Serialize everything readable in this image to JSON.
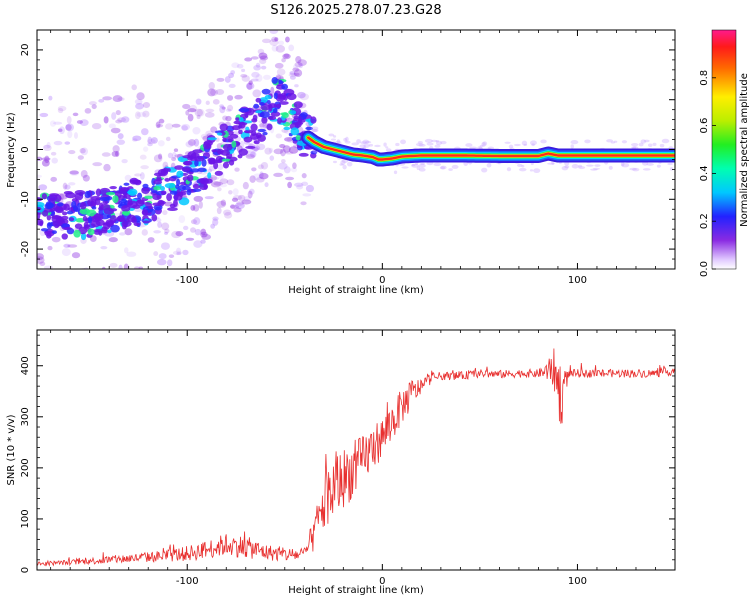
{
  "title": "S126.2025.278.07.23.G28",
  "colors": {
    "snr_line": "#e8302f",
    "spectrum_ridge": "#ff2a1a",
    "spectrum_scatter": "#8a2be2",
    "axis": "#000000"
  },
  "chart_data": [
    {
      "type": "heatmap",
      "title": "",
      "xlabel": "Height of straight line (km)",
      "ylabel": "Frequency (Hz)",
      "xlim": [
        -177,
        150
      ],
      "ylim": [
        -24,
        24
      ],
      "xticks": [
        -100,
        0,
        100
      ],
      "xtick_labels": [
        "-100",
        "0",
        "100"
      ],
      "yticks": [
        -20,
        -10,
        0,
        10,
        20
      ],
      "ytick_labels": [
        "-20",
        "-10",
        "0",
        "10",
        "20"
      ],
      "ridge": {
        "x": [
          -150,
          -140,
          -130,
          -120,
          -110,
          -100,
          -90,
          -80,
          -70,
          -60,
          -55,
          -50,
          -45,
          -40,
          -35,
          -30,
          -25,
          -20,
          -15,
          -10,
          -5,
          -2,
          0,
          5,
          10,
          20,
          40,
          60,
          80,
          85,
          90,
          110,
          130,
          150
        ],
        "y": [
          -13,
          -12,
          -11,
          -10,
          -8,
          -6,
          -3,
          1,
          4,
          7,
          10,
          9,
          6,
          3,
          1.5,
          0.5,
          0,
          -0.5,
          -1,
          -1.2,
          -1.5,
          -2,
          -2,
          -1.8,
          -1.4,
          -1.2,
          -1.2,
          -1.3,
          -1.3,
          -0.8,
          -1.2,
          -1.2,
          -1.2,
          -1.2
        ]
      },
      "colorbar": {
        "label": "Normalized spectral amplitude",
        "range": [
          0,
          1
        ],
        "ticks": [
          0.0,
          0.2,
          0.4,
          0.6,
          0.8
        ],
        "tick_labels": [
          "0.0",
          "0.2",
          "0.4",
          "0.6",
          "0.8"
        ]
      }
    },
    {
      "type": "line",
      "title": "",
      "xlabel": "Height of straight line (km)",
      "ylabel": "SNR (10 * v/v)",
      "xlim": [
        -177,
        150
      ],
      "ylim": [
        0,
        470
      ],
      "xticks": [
        -100,
        0,
        100
      ],
      "xtick_labels": [
        "-100",
        "0",
        "100"
      ],
      "yticks": [
        0,
        100,
        200,
        300,
        400
      ],
      "ytick_labels": [
        "0",
        "100",
        "200",
        "300",
        "400"
      ],
      "series": [
        {
          "name": "SNR",
          "x": [
            -177,
            -160,
            -140,
            -120,
            -100,
            -90,
            -80,
            -70,
            -60,
            -50,
            -40,
            -35,
            -30,
            -25,
            -20,
            -15,
            -10,
            -5,
            0,
            5,
            10,
            15,
            20,
            25,
            30,
            40,
            50,
            60,
            70,
            80,
            85,
            88,
            90,
            92,
            94,
            96,
            100,
            110,
            120,
            130,
            140,
            150
          ],
          "y": [
            12,
            15,
            20,
            25,
            32,
            40,
            50,
            45,
            35,
            30,
            30,
            70,
            130,
            160,
            180,
            195,
            215,
            240,
            260,
            290,
            320,
            345,
            360,
            375,
            380,
            380,
            385,
            383,
            385,
            385,
            390,
            395,
            360,
            340,
            370,
            385,
            385,
            385,
            385,
            385,
            385,
            390
          ],
          "noise": [
            4,
            5,
            8,
            10,
            15,
            18,
            22,
            22,
            16,
            14,
            12,
            35,
            60,
            65,
            60,
            55,
            50,
            45,
            40,
            40,
            35,
            30,
            15,
            10,
            8,
            8,
            8,
            8,
            8,
            8,
            20,
            40,
            70,
            60,
            20,
            8,
            8,
            8,
            8,
            8,
            8,
            8
          ]
        }
      ]
    }
  ]
}
